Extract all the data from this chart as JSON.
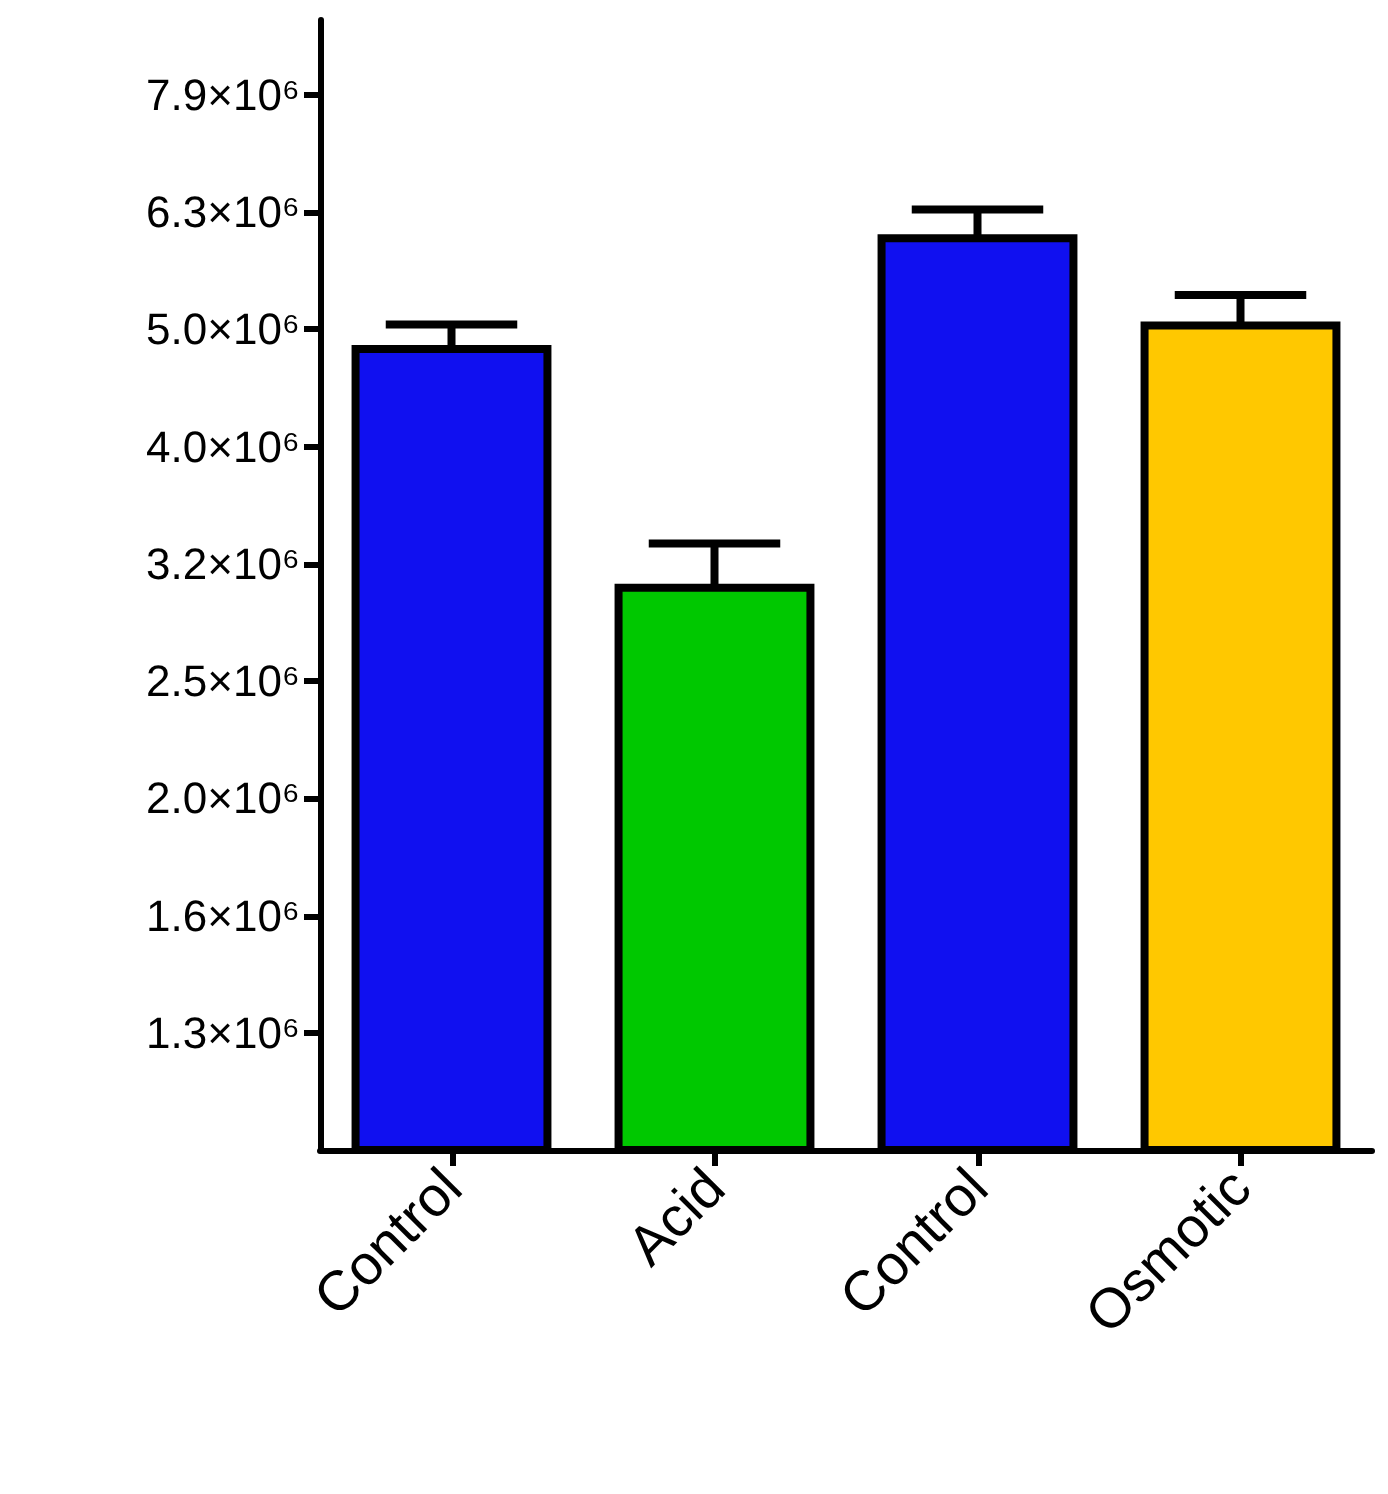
{
  "chart_data": {
    "type": "bar",
    "categories": [
      "Control",
      "Acid",
      "Control",
      "Osmotic"
    ],
    "values": [
      4860000,
      3040000,
      6040000,
      5090000
    ],
    "colors": [
      "#1010f0",
      "#00c800",
      "#1010f0",
      "#ffc800"
    ],
    "errors": [
      200000,
      250000,
      300000,
      270000
    ],
    "log": "y",
    "ylim": [
      1000000,
      9200000
    ],
    "yticks": [
      {
        "value": 1258925,
        "label": "1.3×10⁶"
      },
      {
        "value": 1584893,
        "label": "1.6×10⁶"
      },
      {
        "value": 1995262,
        "label": "2.0×10⁶"
      },
      {
        "value": 2511886,
        "label": "2.5×10⁶"
      },
      {
        "value": 3162278,
        "label": "3.2×10⁶"
      },
      {
        "value": 3981072,
        "label": "4.0×10⁶"
      },
      {
        "value": 5011872,
        "label": "5.0×10⁶"
      },
      {
        "value": 6309573,
        "label": "6.3×10⁶"
      },
      {
        "value": 7943282,
        "label": "7.9×10⁶"
      }
    ],
    "grid": false
  }
}
